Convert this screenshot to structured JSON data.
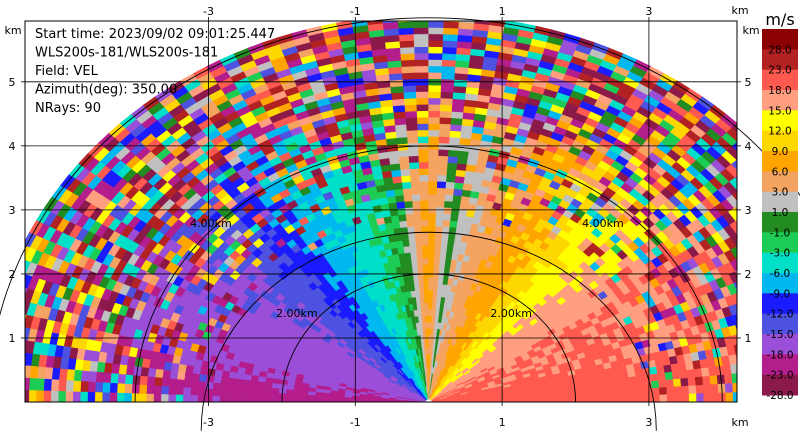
{
  "chart_data": {
    "type": "heatmap",
    "info_lines": [
      "Start time: 2023/09/02 09:01:25.447",
      "WLS200s-181/WLS200s-181",
      "Field: VEL",
      "Azimuth(deg): 350.00",
      "NRays: 90"
    ],
    "unit_label": "km",
    "x_ticks": [
      -3,
      -1,
      1,
      3
    ],
    "y_ticks": [
      1,
      2,
      3,
      4,
      5
    ],
    "xlim": [
      -5.5,
      4.2
    ],
    "ylim": [
      0,
      5.95
    ],
    "grid": true,
    "range_rings_km": [
      2.0,
      4.0,
      6.0
    ],
    "ring_labels": [
      {
        "text": "2.00km",
        "x": -2.08,
        "y": 1.33
      },
      {
        "text": "2.00km",
        "x": 0.84,
        "y": 1.33
      },
      {
        "text": "4.00km",
        "x": -3.25,
        "y": 2.73
      },
      {
        "text": "4.00km",
        "x": 2.09,
        "y": 2.73
      }
    ],
    "colorbar": {
      "unit": "m/s",
      "boundaries": [
        -28.0,
        -23.0,
        -18.0,
        -15.0,
        -12.0,
        -9.0,
        -6.0,
        -3.0,
        -1.0,
        1.0,
        3.0,
        6.0,
        9.0,
        12.0,
        15.0,
        18.0,
        23.0,
        28.0
      ],
      "tick_labels": [
        "-28.0",
        "-23.0",
        "-18.0",
        "-15.0",
        "-12.0",
        "-9.0",
        "-6.0",
        "-3.0",
        "-1.0",
        "1.0",
        "3.0",
        "6.0",
        "9.0",
        "12.0",
        "15.0",
        "18.0",
        "23.0",
        "28.0"
      ],
      "colors": [
        "#8b1a4a",
        "#b41d8c",
        "#9b4fd8",
        "#4d52e0",
        "#1b1bff",
        "#00b8f0",
        "#00e0c8",
        "#1dcc55",
        "#228b22",
        "#c0c0c0",
        "#f4a460",
        "#ffa500",
        "#ffd700",
        "#ffff00",
        "#ff9f80",
        "#ff5a50",
        "#b22222",
        "#8b0000"
      ]
    },
    "velocity_profile": [
      {
        "az": 0,
        "v": 7.5
      },
      {
        "az": 2,
        "v": 5.0
      },
      {
        "az": 5,
        "v": 2.0
      },
      {
        "az": 8,
        "v": -0.5
      },
      {
        "az": 12,
        "v": -2.0
      },
      {
        "az": 20,
        "v": -4.5
      },
      {
        "az": 30,
        "v": -7.5
      },
      {
        "az": 38,
        "v": -11.0
      },
      {
        "az": 45,
        "v": -13.5
      },
      {
        "az": 60,
        "v": -16.5
      },
      {
        "az": 75,
        "v": -17.0
      },
      {
        "az": 86,
        "v": -19.0
      },
      {
        "az": 90,
        "v": -19.0
      }
    ],
    "valid_range_km": [
      2.8,
      4.8
    ]
  }
}
